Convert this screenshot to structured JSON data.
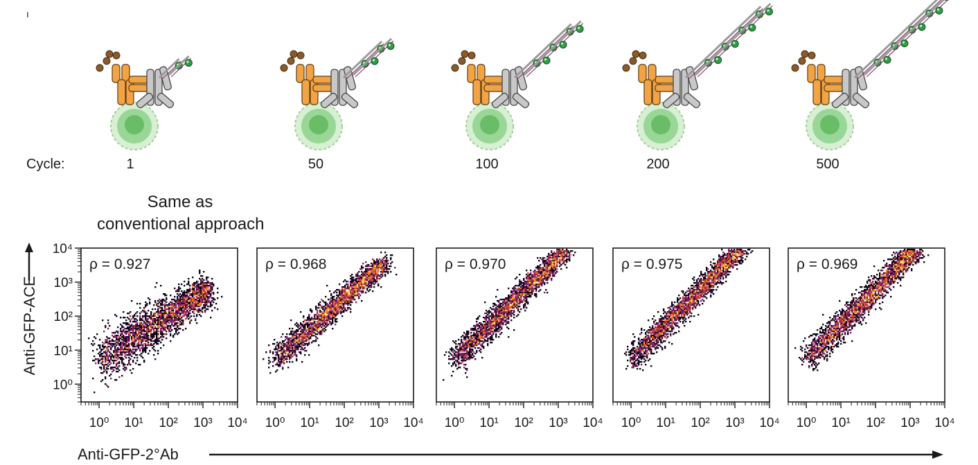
{
  "panel_label": "ı",
  "cycle_label": "Cycle:",
  "cycles": [
    "1",
    "50",
    "100",
    "200",
    "500"
  ],
  "note_line1": "Same as",
  "note_line2": "conventional approach",
  "colors": {
    "antibody_orange": "#f2a444",
    "antibody_gray": "#c8c8c8",
    "cell_green": "#8ed28c",
    "bead_green": "#2f9e44",
    "density_high": "#fcffa4",
    "density_mid": "#e55c30",
    "density_low": "#3b0f53"
  },
  "icons": [
    "primary-antibody-icon",
    "secondary-antibody-icon",
    "cell-icon",
    "dna-strand-icon",
    "fluorophore-icon"
  ],
  "chart_data": {
    "type": "scatter",
    "subtype": "2D density (flow cytometry)",
    "xlabel": "Anti-GFP-2°Ab",
    "ylabel": "Anti-GFP-ACE",
    "xscale": "log",
    "yscale": "log",
    "xlim": [
      0.3,
      10000
    ],
    "ylim": [
      0.3,
      10000
    ],
    "xticks": [
      1,
      10,
      100,
      1000,
      10000
    ],
    "xtick_labels": [
      "10⁰",
      "10¹",
      "10²",
      "10³",
      "10⁴"
    ],
    "yticks": [
      1,
      10,
      100,
      1000,
      10000
    ],
    "ytick_labels": [
      "10⁰",
      "10¹",
      "10²",
      "10³",
      "10⁴"
    ],
    "colormap": "inferno",
    "panels": [
      {
        "cycle": "1",
        "rho_label": "ρ = 0.927",
        "rho": 0.927,
        "x_range": [
          1,
          1500
        ],
        "y_range": [
          5,
          600
        ]
      },
      {
        "cycle": "50",
        "rho_label": "ρ = 0.968",
        "rho": 0.968,
        "x_range": [
          1,
          1500
        ],
        "y_range": [
          5,
          4000
        ]
      },
      {
        "cycle": "100",
        "rho_label": "ρ = 0.970",
        "rho": 0.97,
        "x_range": [
          1,
          1500
        ],
        "y_range": [
          5,
          8000
        ]
      },
      {
        "cycle": "200",
        "rho_label": "ρ = 0.975",
        "rho": 0.975,
        "x_range": [
          1,
          1500
        ],
        "y_range": [
          5,
          10000
        ]
      },
      {
        "cycle": "500",
        "rho_label": "ρ = 0.969",
        "rho": 0.969,
        "x_range": [
          1,
          1500
        ],
        "y_range": [
          5,
          10000
        ]
      }
    ]
  }
}
